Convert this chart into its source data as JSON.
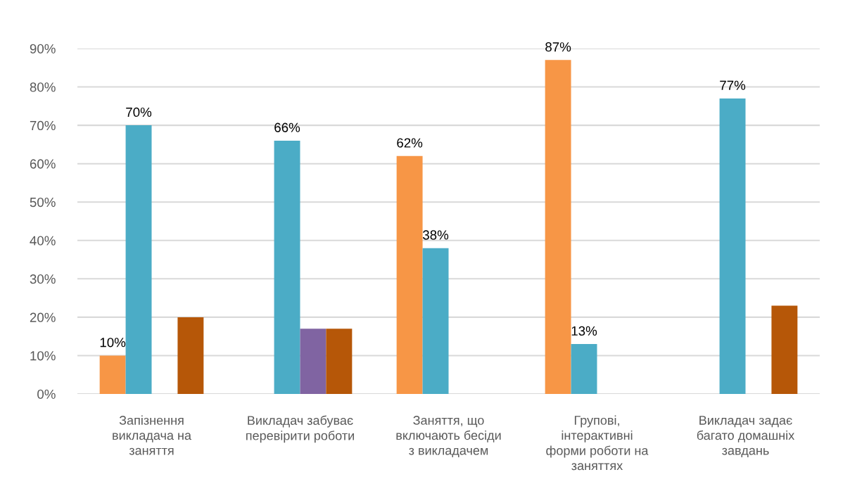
{
  "chart_data": {
    "type": "bar",
    "categories": [
      "Запізнення викладача на заняття",
      "Викладач забуває перевірити роботи",
      "Заняття, що включають бесіди з викладачем",
      "Групові, інтерактивні форми роботи на заняттях",
      "Викладач задає багато домашніх завдань"
    ],
    "series": [
      {
        "color": "#f79646",
        "values": [
          10,
          null,
          62,
          87,
          null
        ],
        "value_labels": [
          "10%",
          null,
          "62%",
          "87%",
          null
        ]
      },
      {
        "color": "#4bacc6",
        "values": [
          70,
          66,
          38,
          13,
          77
        ],
        "value_labels": [
          "70%",
          "66%",
          "38%",
          "13%",
          "77%"
        ]
      },
      {
        "color": "#8064a2",
        "values": [
          null,
          17,
          null,
          null,
          null
        ]
      },
      {
        "color": "#b65708",
        "values": [
          20,
          17,
          null,
          null,
          23
        ]
      }
    ],
    "ylim": [
      0,
      90
    ],
    "yticks": [
      {
        "value": 0,
        "label": "0%"
      },
      {
        "value": 10,
        "label": "10%"
      },
      {
        "value": 20,
        "label": "20%"
      },
      {
        "value": 30,
        "label": "30%"
      },
      {
        "value": 40,
        "label": "40%"
      },
      {
        "value": 50,
        "label": "50%"
      },
      {
        "value": 60,
        "label": "60%"
      },
      {
        "value": 70,
        "label": "70%"
      },
      {
        "value": 80,
        "label": "80%"
      },
      {
        "value": 90,
        "label": "90%"
      }
    ],
    "grid": "y"
  }
}
